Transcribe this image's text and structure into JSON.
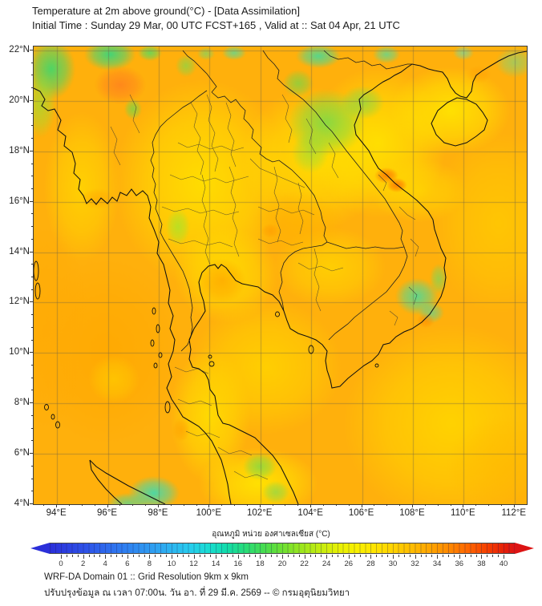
{
  "header": {
    "title_line1": "Temperature at 2m above ground(°C) - [Data Assimilation]",
    "title_line2": "Initial Time : Sunday 29 Mar, 00 UTC FCST+165 , Valid at :: Sat 04 Apr, 21 UTC"
  },
  "map": {
    "lat_values": [
      22,
      20,
      18,
      16,
      14,
      12,
      10,
      8,
      6,
      4
    ],
    "lat_labels": [
      "22°N",
      "20°N",
      "18°N",
      "16°N",
      "14°N",
      "12°N",
      "10°N",
      "8°N",
      "6°N",
      "4°N"
    ],
    "lon_values": [
      94,
      96,
      98,
      100,
      102,
      104,
      106,
      108,
      110,
      112
    ],
    "lon_labels": [
      "94°E",
      "96°E",
      "98°E",
      "100°E",
      "102°E",
      "104°E",
      "106°E",
      "108°E",
      "110°E",
      "112°E"
    ]
  },
  "colorbar": {
    "title": "อุณหภูมิ หน่วย องศาเซลเซียส (°C)",
    "min": 0,
    "max": 40,
    "tick_step": 2,
    "minor_step": 0.5,
    "tick_values": [
      0,
      2,
      4,
      6,
      8,
      10,
      12,
      14,
      16,
      18,
      20,
      22,
      24,
      26,
      28,
      30,
      32,
      34,
      36,
      38,
      40
    ],
    "left_end_color": "#2B2FD9",
    "right_end_color": "#DC1414"
  },
  "footer": {
    "line1": "WRF-DA Domain 01 :: Grid Resolution 9km x 9km",
    "line2": "ปรับปรุงข้อมูล ณ เวลา 07:00น. วัน อา. ที่ 29 มี.ค. 2569 -- © กรมอุตุนิยมวิทยา"
  }
}
